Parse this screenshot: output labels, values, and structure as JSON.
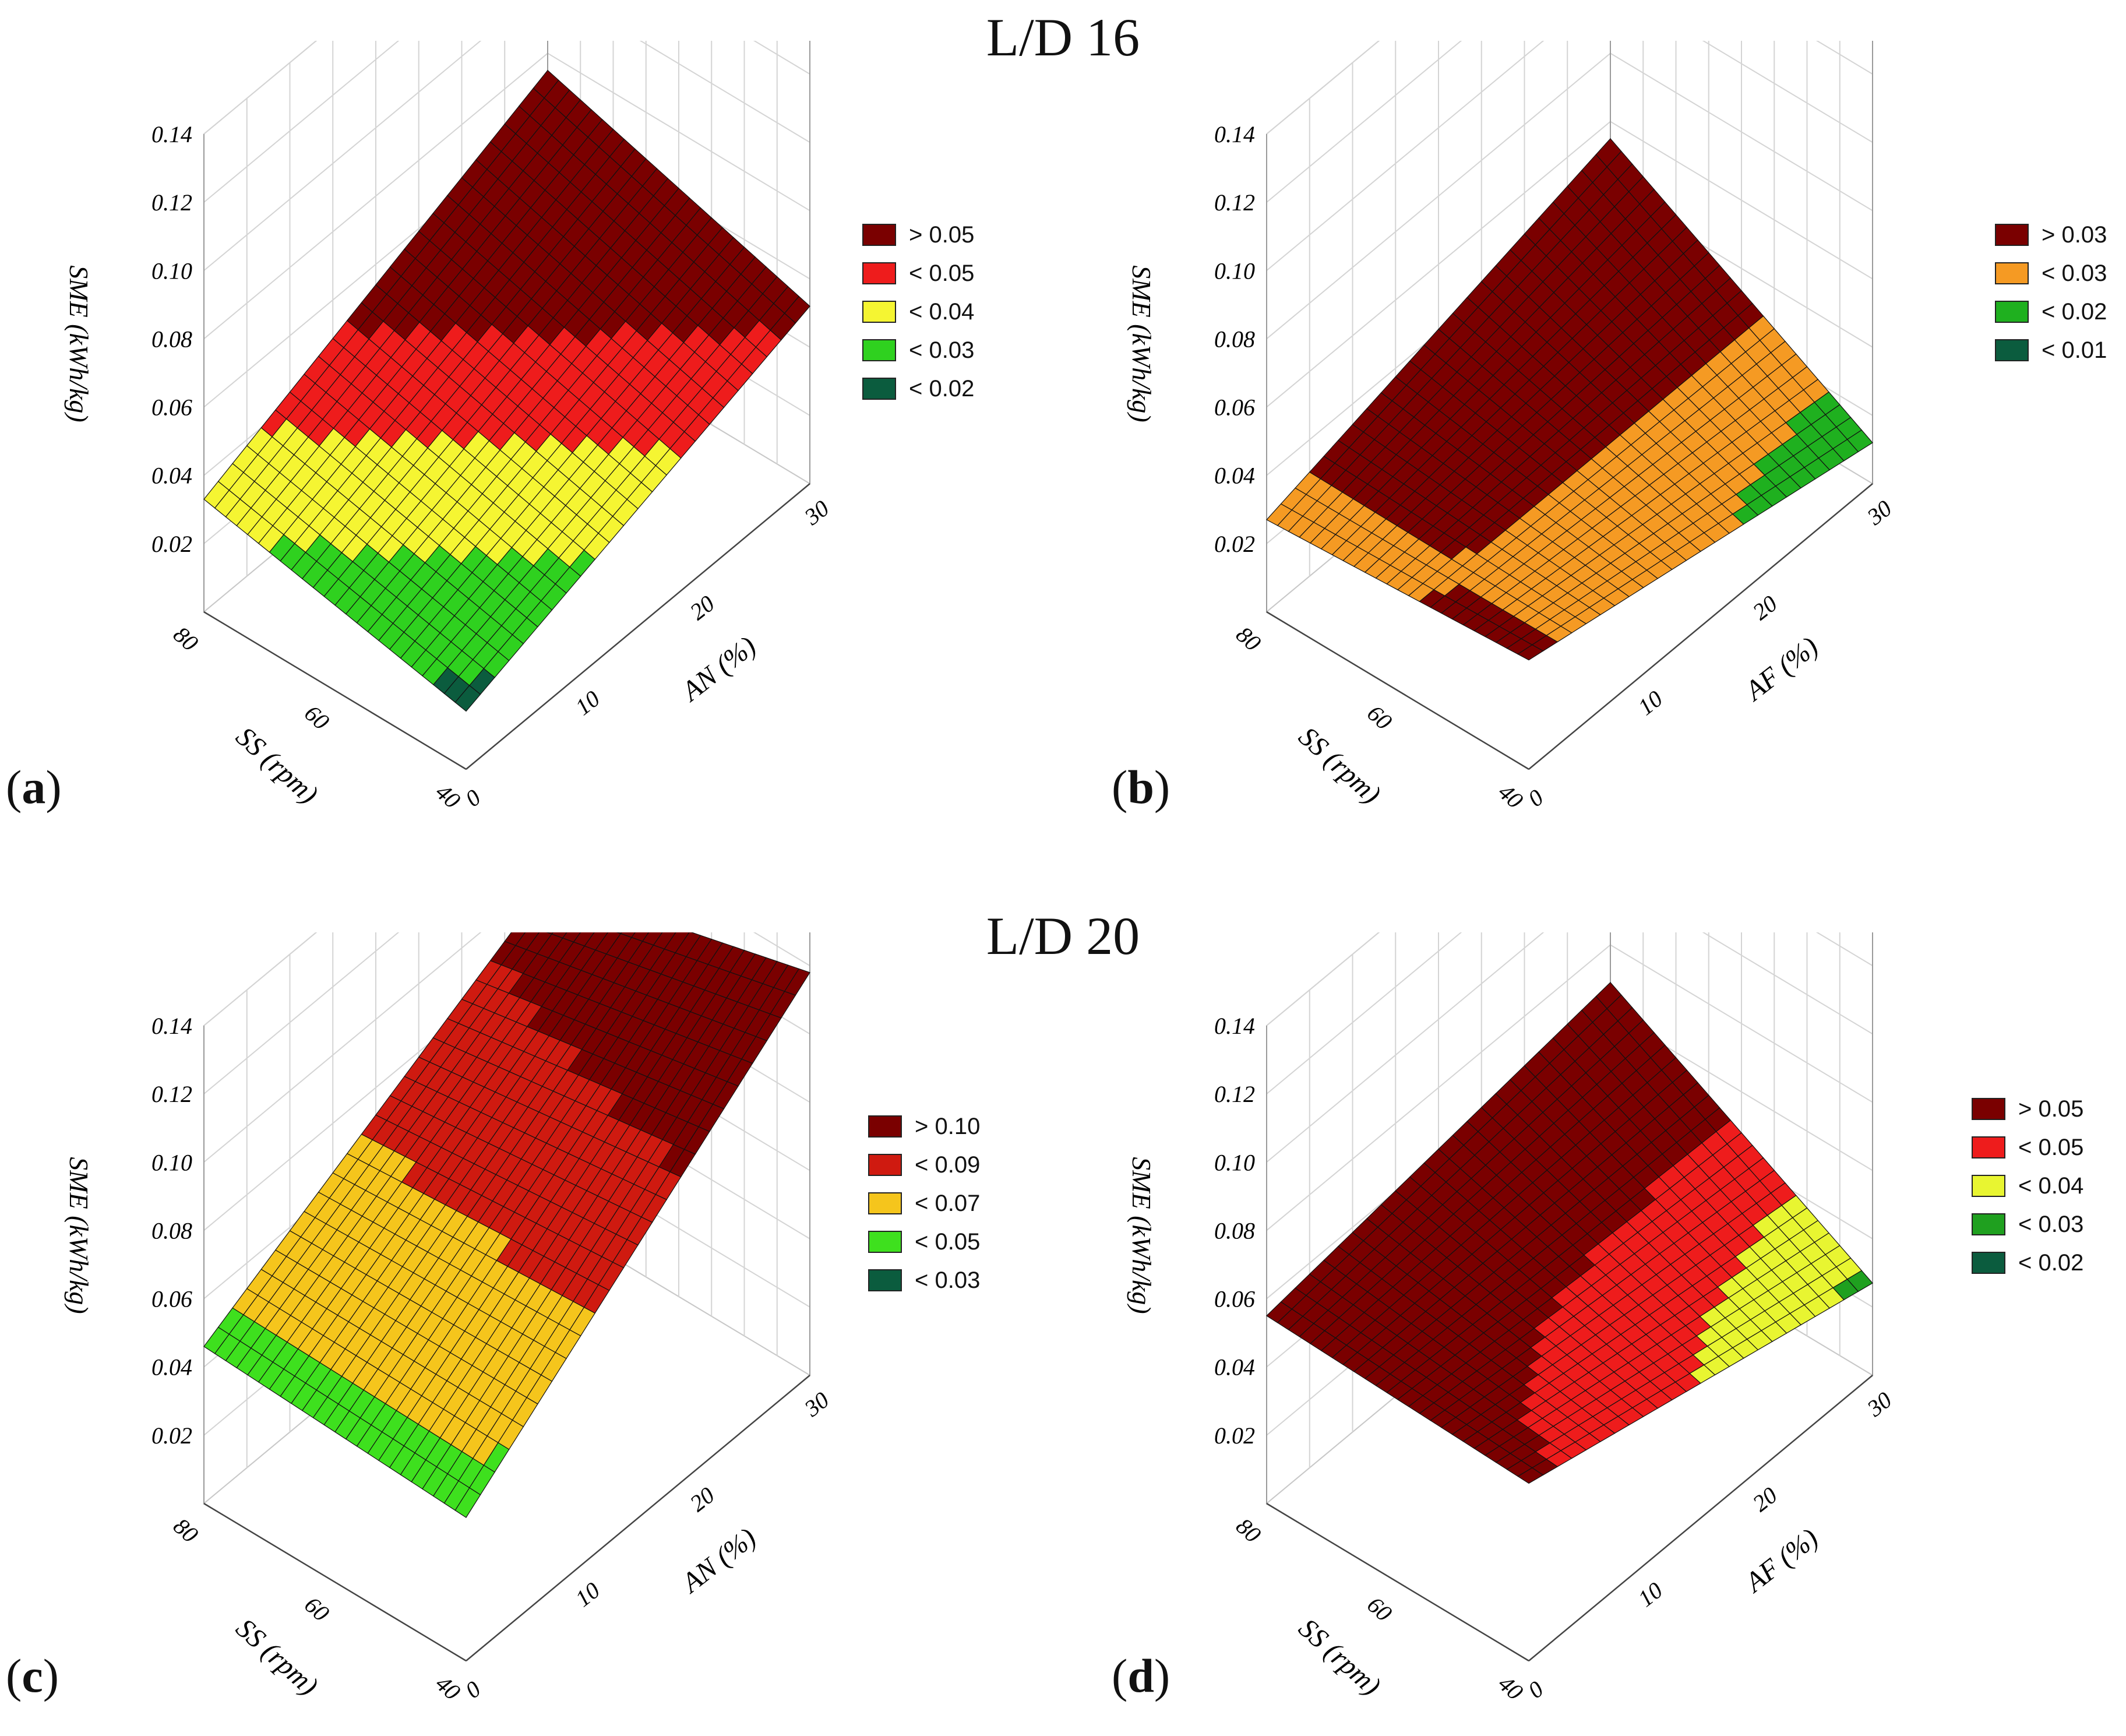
{
  "group_titles": [
    "L/D 16",
    "L/D 20"
  ],
  "panels": [
    {
      "label": "a",
      "zlabel": "SME (kWh/kg)",
      "xlabel": "AN (%)",
      "ylabel": "SS (rpm)",
      "zticks": [
        "0.02",
        "0.04",
        "0.06",
        "0.08",
        "0.10",
        "0.12",
        "0.14"
      ],
      "xticks": [
        "0",
        "10",
        "20",
        "30"
      ],
      "yticks": [
        "80",
        "60",
        "40"
      ],
      "legend": [
        {
          "label": "> 0.05",
          "color": "#7a0000"
        },
        {
          "label": "< 0.05",
          "color": "#ee1c1c"
        },
        {
          "label": "< 0.04",
          "color": "#f5f532"
        },
        {
          "label": "< 0.03",
          "color": "#2fd11f"
        },
        {
          "label": "< 0.02",
          "color": "#0b5c3e"
        }
      ]
    },
    {
      "label": "b",
      "zlabel": "SME (kWh/kg)",
      "xlabel": "AF (%)",
      "ylabel": "SS (rpm)",
      "zticks": [
        "0.02",
        "0.04",
        "0.06",
        "0.08",
        "0.10",
        "0.12",
        "0.14"
      ],
      "xticks": [
        "0",
        "10",
        "20",
        "30"
      ],
      "yticks": [
        "80",
        "60",
        "40"
      ],
      "legend": [
        {
          "label": "> 0.03",
          "color": "#7a0000"
        },
        {
          "label": "< 0.03",
          "color": "#f59a23"
        },
        {
          "label": "< 0.02",
          "color": "#1fb01f"
        },
        {
          "label": "< 0.01",
          "color": "#0b5c3e"
        }
      ]
    },
    {
      "label": "c",
      "zlabel": "SME (kWh/kg)",
      "xlabel": "AN (%)",
      "ylabel": "SS (rpm)",
      "zticks": [
        "0.02",
        "0.04",
        "0.06",
        "0.08",
        "0.10",
        "0.12",
        "0.14"
      ],
      "xticks": [
        "0",
        "10",
        "20",
        "30"
      ],
      "yticks": [
        "80",
        "60",
        "40"
      ],
      "legend": [
        {
          "label": "> 0.10",
          "color": "#7a0000"
        },
        {
          "label": "< 0.09",
          "color": "#cf1a10"
        },
        {
          "label": "< 0.07",
          "color": "#f5c51c"
        },
        {
          "label": "< 0.05",
          "color": "#3ee01e"
        },
        {
          "label": "< 0.03",
          "color": "#0b5c3e"
        }
      ]
    },
    {
      "label": "d",
      "zlabel": "SME (kWh/kg)",
      "xlabel": "AF (%)",
      "ylabel": "SS (rpm)",
      "zticks": [
        "0.02",
        "0.04",
        "0.06",
        "0.08",
        "0.10",
        "0.12",
        "0.14"
      ],
      "xticks": [
        "0",
        "10",
        "20",
        "30"
      ],
      "yticks": [
        "80",
        "60",
        "40"
      ],
      "legend": [
        {
          "label": "> 0.05",
          "color": "#7a0000"
        },
        {
          "label": "< 0.05",
          "color": "#ee1c1c"
        },
        {
          "label": "< 0.04",
          "color": "#e8f531"
        },
        {
          "label": "< 0.03",
          "color": "#1fa01f"
        },
        {
          "label": "< 0.02",
          "color": "#0b5c3e"
        }
      ]
    }
  ],
  "chart_data": [
    {
      "type": "surface",
      "panel": "a",
      "x_label": "AN (%)",
      "x_range": [
        0,
        30
      ],
      "y_label": "SS (rpm)",
      "y_range": [
        40,
        80
      ],
      "z_label": "SME (kWh/kg)",
      "z_range": [
        0,
        0.14
      ],
      "surface_estimate": {
        "z_AN0_SS40": 0.017,
        "z_AN30_SS40": 0.052,
        "z_AN0_SS80": 0.033,
        "z_AN30_SS80": 0.075
      },
      "grid": true
    },
    {
      "type": "surface",
      "panel": "b",
      "x_label": "AF (%)",
      "x_range": [
        0,
        30
      ],
      "y_label": "SS (rpm)",
      "y_range": [
        40,
        80
      ],
      "z_label": "SME (kWh/kg)",
      "z_range": [
        0,
        0.14
      ],
      "surface_estimate": {
        "z_AF0_SS40": 0.032,
        "z_AF30_SS40": 0.012,
        "z_AF0_SS80": 0.027,
        "z_AF30_SS80": 0.055
      },
      "grid": true
    },
    {
      "type": "surface",
      "panel": "c",
      "x_label": "AN (%)",
      "x_range": [
        0,
        30
      ],
      "y_label": "SS (rpm)",
      "y_range": [
        40,
        80
      ],
      "z_label": "SME (kWh/kg)",
      "z_range": [
        0,
        0.14
      ],
      "surface_estimate": {
        "z_AN0_SS40": 0.042,
        "z_AN30_SS40": 0.118,
        "z_AN0_SS80": 0.046,
        "z_AN30_SS80": 0.098
      },
      "grid": true
    },
    {
      "type": "surface",
      "panel": "d",
      "x_label": "AF (%)",
      "x_range": [
        0,
        30
      ],
      "y_label": "SS (rpm)",
      "y_range": [
        40,
        80
      ],
      "z_label": "SME (kWh/kg)",
      "z_range": [
        0,
        0.14
      ],
      "surface_estimate": {
        "z_AF0_SS40": 0.052,
        "z_AF30_SS40": 0.027,
        "z_AF0_SS80": 0.055,
        "z_AF30_SS80": 0.069
      },
      "grid": true
    }
  ]
}
